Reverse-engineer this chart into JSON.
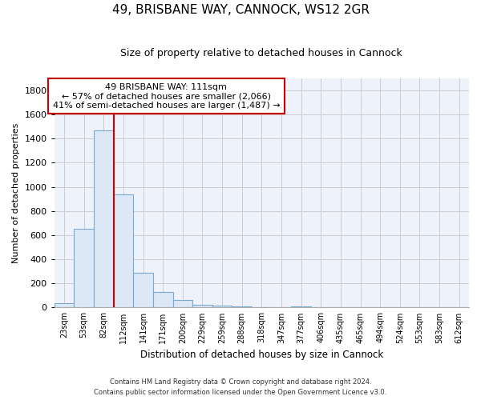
{
  "title1": "49, BRISBANE WAY, CANNOCK, WS12 2GR",
  "title2": "Size of property relative to detached houses in Cannock",
  "xlabel": "Distribution of detached houses by size in Cannock",
  "ylabel": "Number of detached properties",
  "categories": [
    "23sqm",
    "53sqm",
    "82sqm",
    "112sqm",
    "141sqm",
    "171sqm",
    "200sqm",
    "229sqm",
    "259sqm",
    "288sqm",
    "318sqm",
    "347sqm",
    "377sqm",
    "406sqm",
    "435sqm",
    "465sqm",
    "494sqm",
    "524sqm",
    "553sqm",
    "583sqm",
    "612sqm"
  ],
  "values": [
    35,
    650,
    1470,
    935,
    290,
    130,
    65,
    22,
    18,
    10,
    0,
    0,
    10,
    0,
    0,
    0,
    0,
    0,
    0,
    0,
    0
  ],
  "bar_color": "#dce8f5",
  "bar_edge_color": "#7aaad0",
  "grid_color": "#cccccc",
  "vline_color": "#cc0000",
  "annotation_text": "49 BRISBANE WAY: 111sqm\n← 57% of detached houses are smaller (2,066)\n41% of semi-detached houses are larger (1,487) →",
  "annotation_box_color": "#ffffff",
  "annotation_box_edge": "#cc0000",
  "ylim": [
    0,
    1900
  ],
  "yticks": [
    0,
    200,
    400,
    600,
    800,
    1000,
    1200,
    1400,
    1600,
    1800
  ],
  "footnote1": "Contains HM Land Registry data © Crown copyright and database right 2024.",
  "footnote2": "Contains public sector information licensed under the Open Government Licence v3.0.",
  "bg_color": "#eef2fa",
  "title1_fontsize": 11,
  "title2_fontsize": 9
}
